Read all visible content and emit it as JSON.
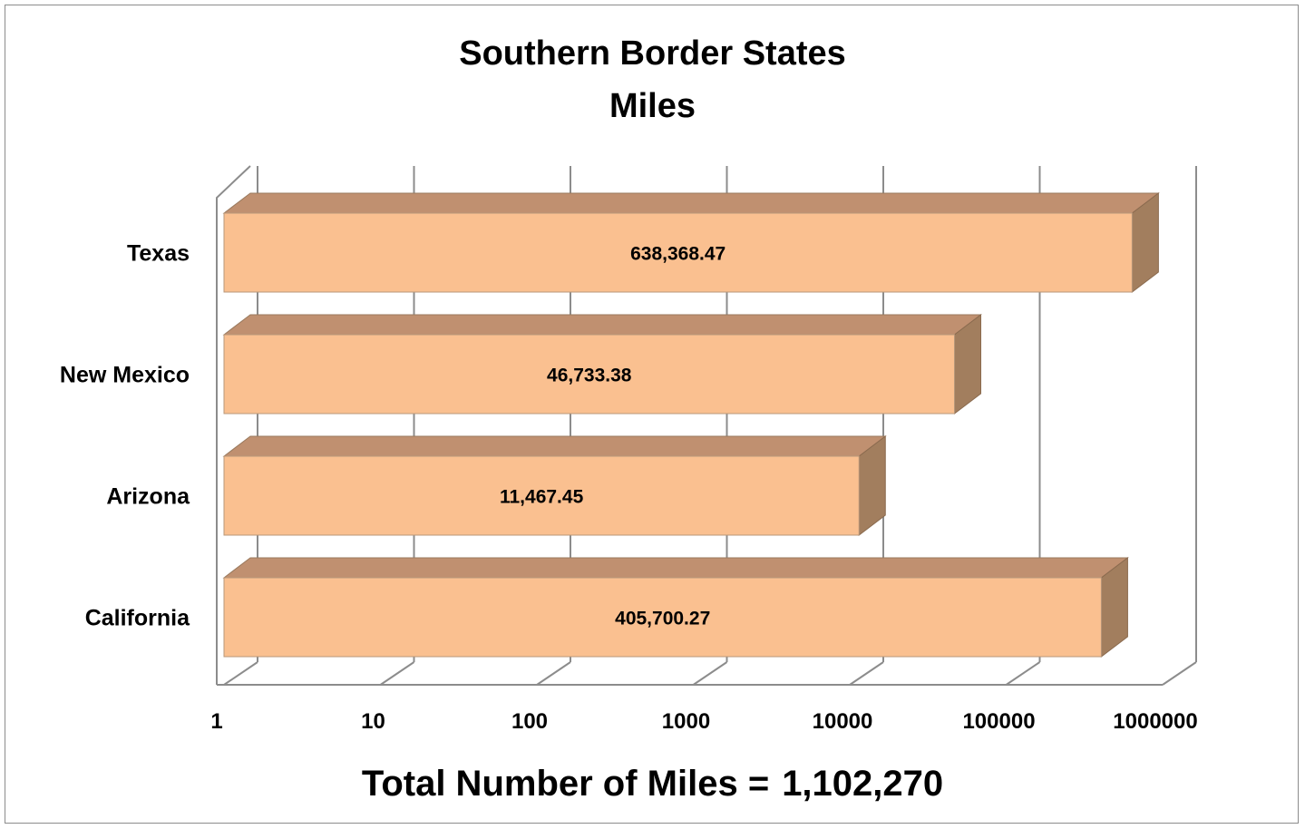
{
  "chart_data": {
    "type": "bar",
    "orientation": "horizontal",
    "three_d": true,
    "title_lines": [
      "Southern Border States",
      "Miles"
    ],
    "categories": [
      "Texas",
      "New Mexico",
      "Arizona",
      "California"
    ],
    "values": [
      638368.47,
      46733.38,
      11467.45,
      405700.27
    ],
    "value_labels": [
      "638,368.47",
      "46,733.38",
      "11,467.45",
      "405,700.27"
    ],
    "x_scale": "log",
    "xlim": [
      1,
      1000000
    ],
    "x_ticks": [
      1,
      10,
      100,
      1000,
      10000,
      100000,
      1000000
    ],
    "x_tick_labels": [
      "1",
      "10",
      "100",
      "1000",
      "10000",
      "100000",
      "1000000"
    ],
    "grid": true,
    "bar_color": "#fac090",
    "bar_top_color": "#c09070",
    "bar_side_color": "#a27e5e",
    "grid_color": "#8c8c8c"
  },
  "footer": {
    "label": "Total Number of Miles =",
    "value": "1,102,270"
  }
}
